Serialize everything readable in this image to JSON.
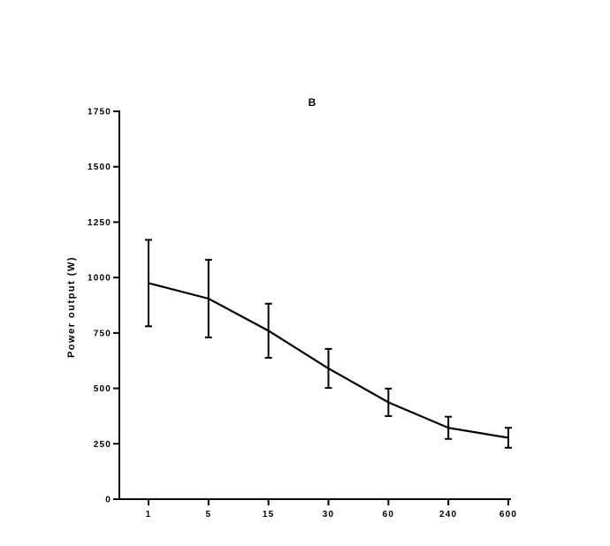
{
  "chart_data": {
    "type": "line",
    "title": "B",
    "xlabel": "",
    "ylabel": "Power output (W)",
    "categories": [
      "1",
      "5",
      "15",
      "30",
      "60",
      "240",
      "600"
    ],
    "series": [
      {
        "values": [
          975,
          905,
          760,
          590,
          437,
          322,
          277
        ],
        "error": [
          195,
          175,
          122,
          88,
          62,
          50,
          45
        ]
      }
    ],
    "ylim": [
      0,
      1750
    ],
    "yticks": [
      0,
      250,
      500,
      750,
      1000,
      1250,
      1500,
      1750
    ],
    "grid": false,
    "legend": "none"
  }
}
